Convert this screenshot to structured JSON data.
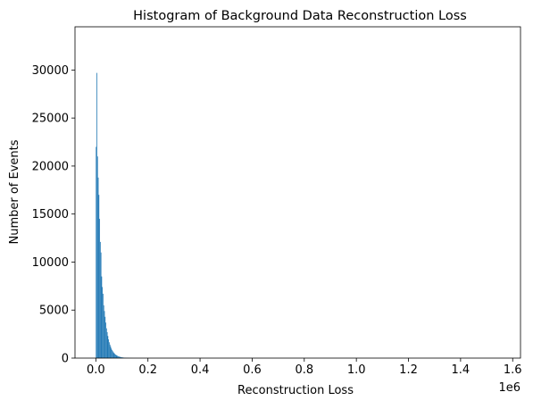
{
  "chart_data": {
    "type": "bar",
    "subtype": "histogram",
    "title": "Histogram of Background Data Reconstruction Loss",
    "xlabel": "Reconstruction Loss",
    "ylabel": "Number of Events",
    "x_offset_label": "1e6",
    "xlim": [
      -80000,
      1630000
    ],
    "ylim": [
      0,
      34500
    ],
    "x_ticks": [
      0,
      200000,
      400000,
      600000,
      800000,
      1000000,
      1200000,
      1400000,
      1600000
    ],
    "x_tick_labels": [
      "0.0",
      "0.2",
      "0.4",
      "0.6",
      "0.8",
      "1.0",
      "1.2",
      "1.4",
      "1.6"
    ],
    "y_ticks": [
      0,
      5000,
      10000,
      15000,
      20000,
      25000,
      30000
    ],
    "y_tick_labels": [
      "0",
      "5000",
      "10000",
      "15000",
      "20000",
      "25000",
      "30000"
    ],
    "bar_color": "#1f77b4",
    "grid": false,
    "bins": {
      "start": 0,
      "width": 2650,
      "counts": [
        22000,
        29700,
        21000,
        18800,
        17000,
        14500,
        12100,
        11000,
        8500,
        7400,
        6700,
        5500,
        4900,
        4300,
        3700,
        3100,
        2700,
        2300,
        1950,
        1650,
        1400,
        1200,
        1000,
        850,
        720,
        610,
        520,
        440,
        370,
        320,
        270,
        230,
        195,
        165,
        140,
        120,
        100,
        85,
        70,
        60,
        50,
        42,
        36,
        30,
        25,
        21,
        18,
        15,
        12,
        10,
        8,
        7,
        6,
        5,
        4,
        3,
        3,
        2,
        2,
        1
      ]
    }
  }
}
